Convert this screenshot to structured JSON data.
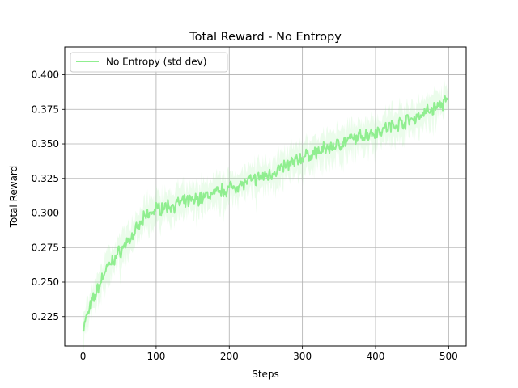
{
  "chart_data": {
    "type": "line",
    "title": "Total Reward - No Entropy",
    "xlabel": "Steps",
    "ylabel": "Total Reward",
    "xlim": [
      -24.95,
      523.95
    ],
    "ylim": [
      0.2038,
      0.4202
    ],
    "xticks": [
      0,
      100,
      200,
      300,
      400,
      500
    ],
    "yticks": [
      0.225,
      0.25,
      0.275,
      0.3,
      0.325,
      0.35,
      0.375,
      0.4
    ],
    "xtick_labels": [
      "0",
      "100",
      "200",
      "300",
      "400",
      "500"
    ],
    "ytick_labels": [
      "0.225",
      "0.250",
      "0.275",
      "0.300",
      "0.325",
      "0.350",
      "0.375",
      "0.400"
    ],
    "grid": true,
    "legend_position": "upper-left",
    "series": [
      {
        "name": "No Entropy (std dev)",
        "color": "#90ee90",
        "band_color": "#90ee90",
        "band_opacity": 0.18,
        "x_range": [
          0,
          499
        ],
        "n_points": 500,
        "trend_x": [
          0,
          5,
          10,
          20,
          30,
          50,
          70,
          85,
          100,
          150,
          200,
          250,
          300,
          350,
          400,
          450,
          499
        ],
        "trend_y": [
          0.216,
          0.225,
          0.232,
          0.245,
          0.258,
          0.272,
          0.285,
          0.297,
          0.303,
          0.309,
          0.318,
          0.327,
          0.34,
          0.35,
          0.359,
          0.368,
          0.381
        ],
        "noise_amplitude": 0.006,
        "std_dev_band": 0.01
      }
    ]
  }
}
